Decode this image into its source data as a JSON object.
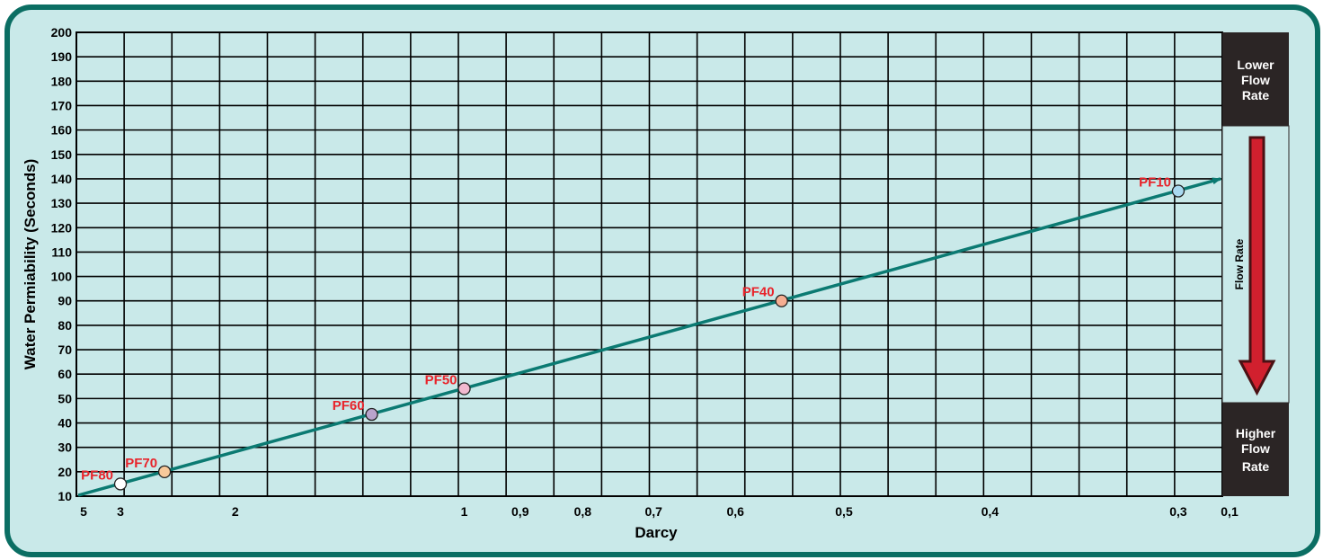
{
  "chart_data": {
    "type": "line",
    "ylabel": "Water Permiability (Seconds)",
    "xlabel": "Darcy",
    "yticks": [
      "10",
      "20",
      "30",
      "40",
      "50",
      "60",
      "70",
      "80",
      "90",
      "100",
      "110",
      "120",
      "130",
      "140",
      "150",
      "160",
      "170",
      "180",
      "190",
      "200"
    ],
    "ylim": [
      10,
      200
    ],
    "xticks": [
      "5",
      "3",
      "2",
      "1",
      "0,9",
      "0,8",
      "0,7",
      "0,6",
      "0,5",
      "0,4",
      "0,3",
      "0,1"
    ],
    "xlim_seconds": [
      10,
      140
    ],
    "trend_line": {
      "from_seconds": 10,
      "to_seconds": 140,
      "color": "#0b7a72"
    },
    "points": [
      {
        "label": "PF80",
        "darcy": 3,
        "seconds": 15,
        "color": "#ffffff"
      },
      {
        "label": "PF70",
        "darcy": 2.5,
        "seconds": 20,
        "color": "#f8c99a"
      },
      {
        "label": "PF60",
        "darcy": 1.3,
        "seconds": 43.5,
        "color": "#b9a3cc"
      },
      {
        "label": "PF50",
        "darcy": 1,
        "seconds": 54,
        "color": "#f2b9cf"
      },
      {
        "label": "PF40",
        "darcy": 0.55,
        "seconds": 90,
        "color": "#f6ae92"
      },
      {
        "label": "PF10",
        "darcy": 0.3,
        "seconds": 135,
        "color": "#a9d9f0"
      }
    ],
    "grid": true
  },
  "side_panel": {
    "top_label": [
      "Lower",
      "Flow",
      "Rate"
    ],
    "middle_label": "Flow Rate",
    "bottom_label": [
      "Higher",
      "Flow",
      "Rate"
    ],
    "arrow_color": "#d1202e",
    "dark_color": "#2b2525"
  }
}
